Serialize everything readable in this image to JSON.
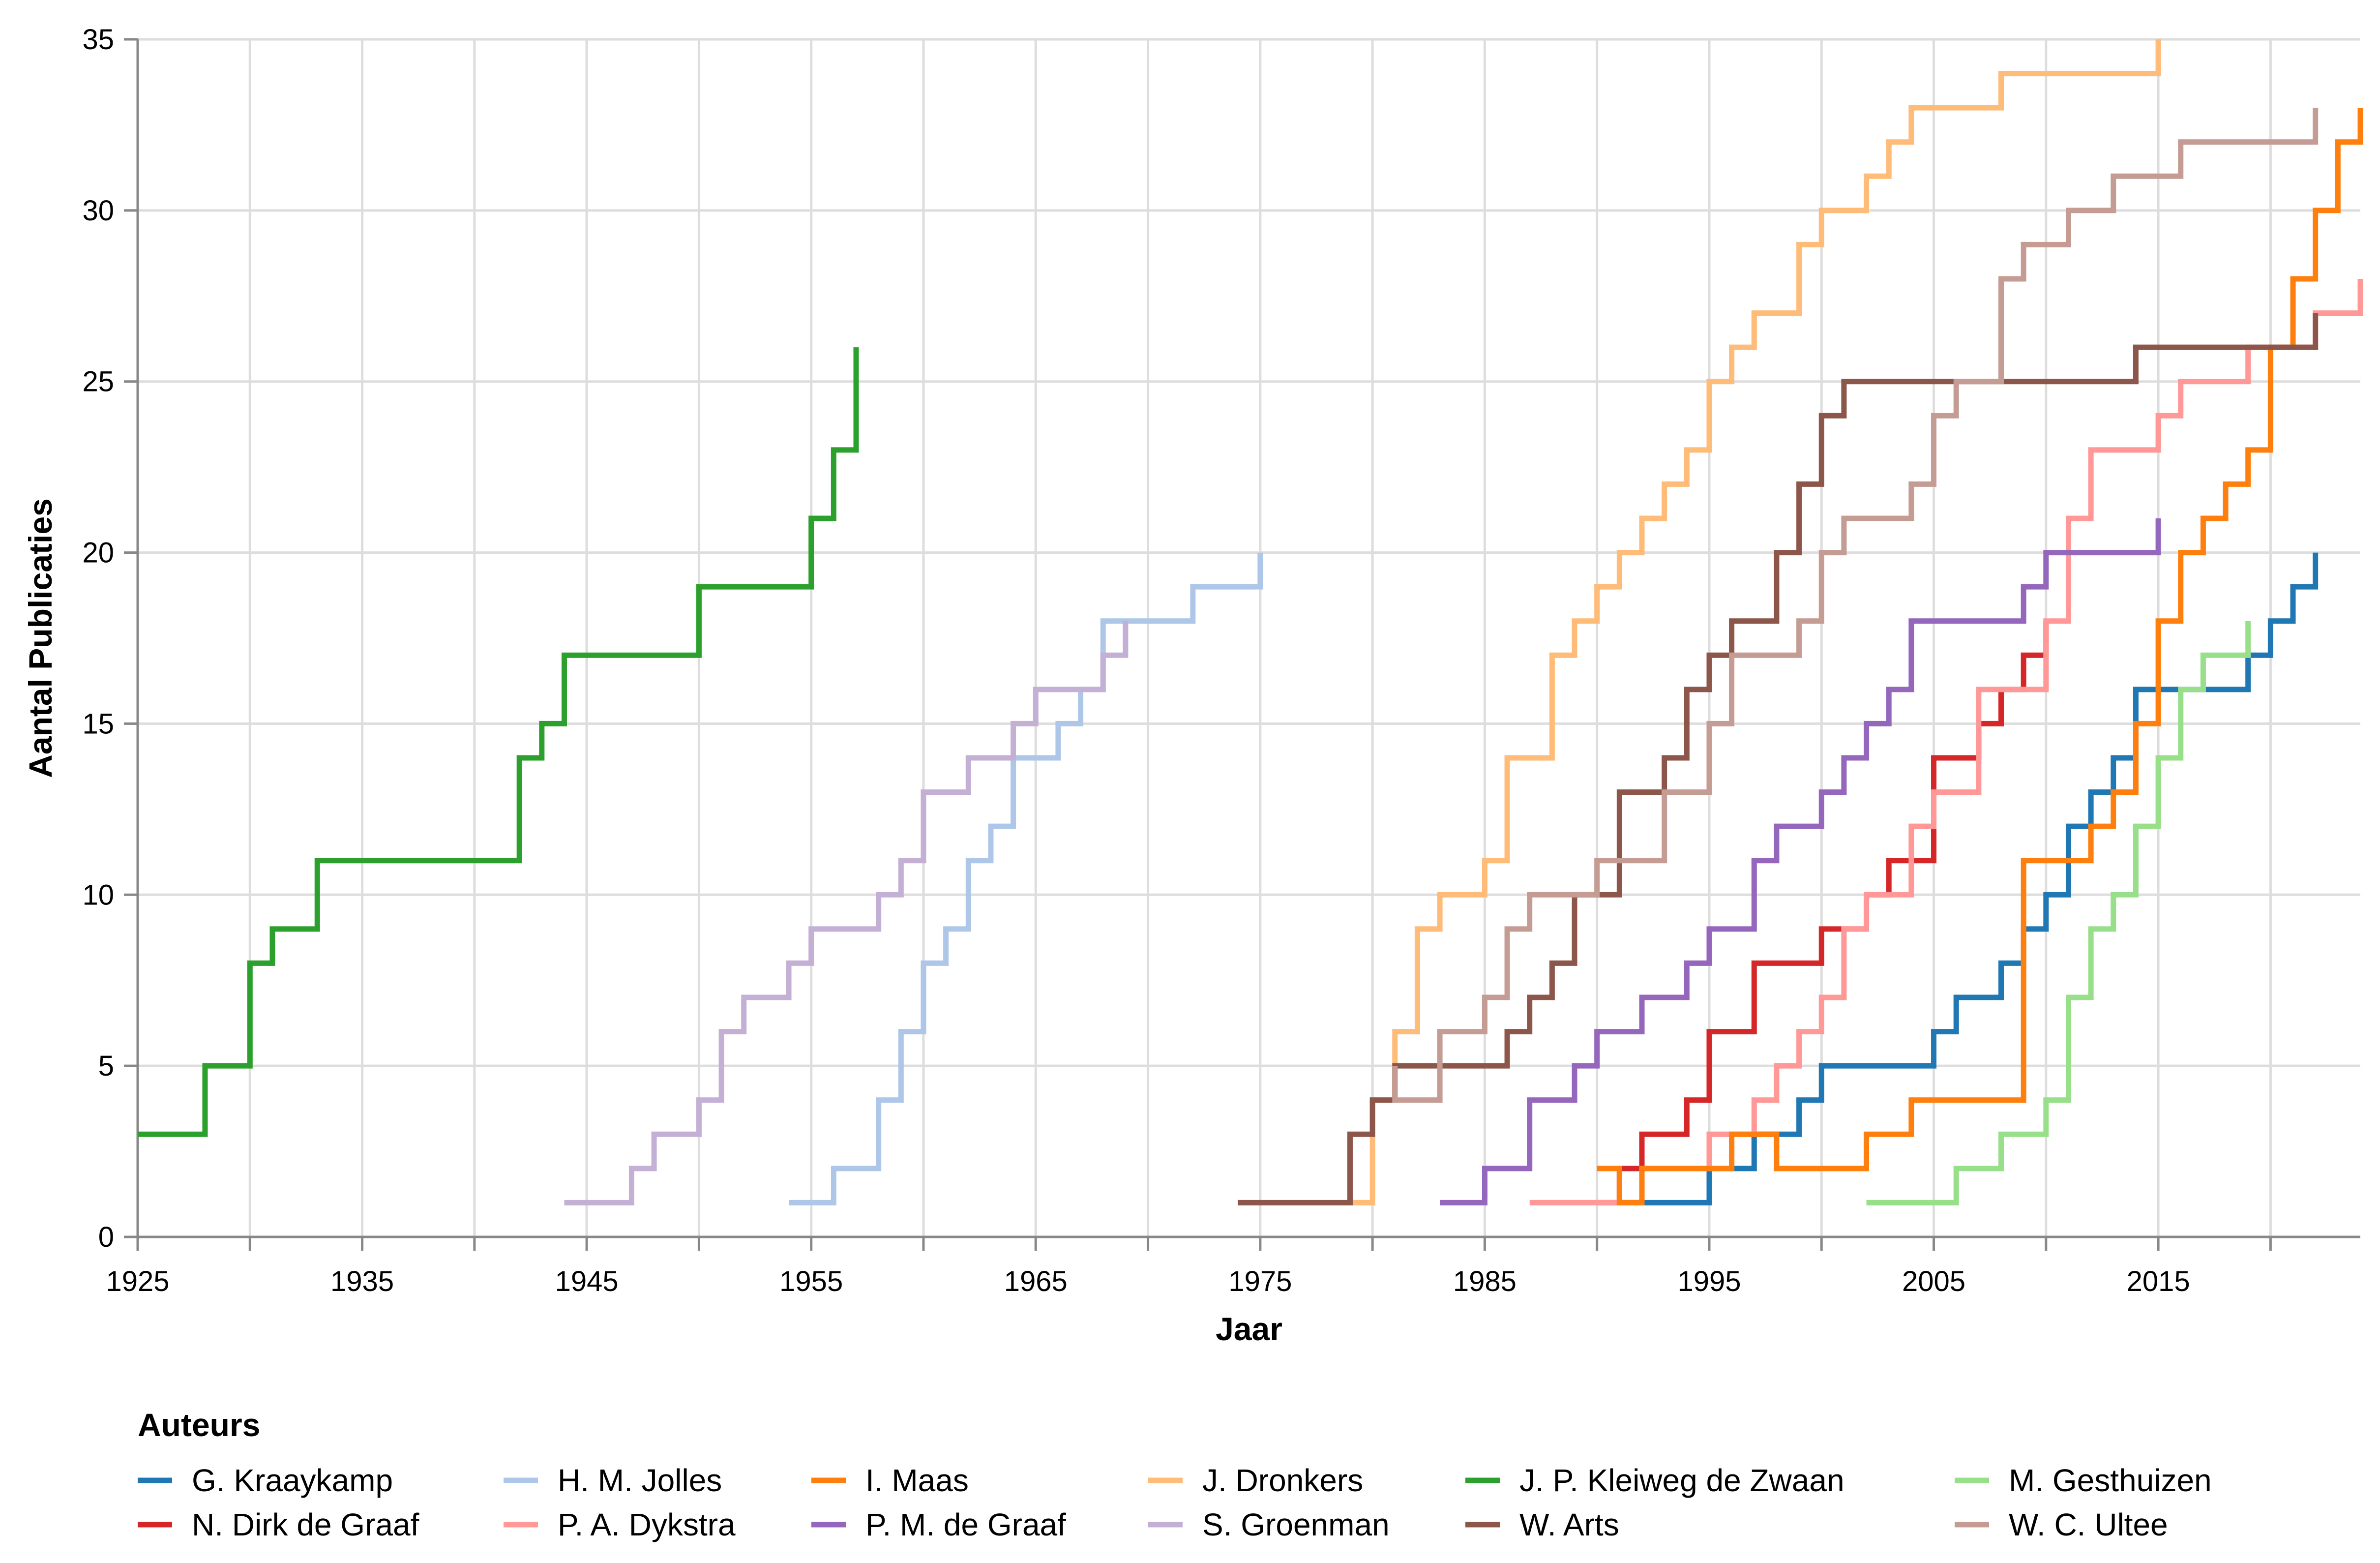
{
  "chart_data": {
    "type": "line",
    "interpolation": "step",
    "title": "",
    "xlabel": "Jaar",
    "ylabel": "Aantal Publicaties",
    "xlim": [
      1925,
      2024
    ],
    "ylim": [
      0,
      35
    ],
    "x_ticks": [
      1925,
      1935,
      1945,
      1955,
      1965,
      1975,
      1985,
      1995,
      2005,
      2015
    ],
    "y_ticks": [
      0,
      5,
      10,
      15,
      20,
      25,
      30,
      35
    ],
    "grid": true,
    "legend": {
      "title": "Auteurs",
      "position": "bottom"
    },
    "series": [
      {
        "name": "G. Kraaykamp",
        "color": "#1f77b4",
        "points": [
          [
            1991,
            1
          ],
          [
            1995,
            2
          ],
          [
            1997,
            3
          ],
          [
            1999,
            4
          ],
          [
            2000,
            5
          ],
          [
            2005,
            6
          ],
          [
            2006,
            7
          ],
          [
            2008,
            8
          ],
          [
            2009,
            9
          ],
          [
            2010,
            10
          ],
          [
            2011,
            12
          ],
          [
            2012,
            13
          ],
          [
            2013,
            14
          ],
          [
            2014,
            16
          ],
          [
            2016,
            16
          ],
          [
            2019,
            17
          ],
          [
            2020,
            18
          ],
          [
            2021,
            19
          ],
          [
            2022,
            20
          ]
        ]
      },
      {
        "name": "N. Dirk de Graaf",
        "color": "#d62728",
        "points": [
          [
            1990,
            1
          ],
          [
            1991,
            2
          ],
          [
            1992,
            3
          ],
          [
            1994,
            4
          ],
          [
            1995,
            6
          ],
          [
            1997,
            8
          ],
          [
            2000,
            9
          ],
          [
            2002,
            10
          ],
          [
            2003,
            11
          ],
          [
            2005,
            14
          ],
          [
            2007,
            15
          ],
          [
            2008,
            16
          ],
          [
            2009,
            17
          ],
          [
            2010,
            18
          ]
        ]
      },
      {
        "name": "H. M. Jolles",
        "color": "#aec7e8",
        "points": [
          [
            1954,
            1
          ],
          [
            1956,
            2
          ],
          [
            1958,
            4
          ],
          [
            1959,
            6
          ],
          [
            1960,
            8
          ],
          [
            1961,
            9
          ],
          [
            1962,
            11
          ],
          [
            1963,
            12
          ],
          [
            1964,
            14
          ],
          [
            1966,
            15
          ],
          [
            1967,
            16
          ],
          [
            1968,
            18
          ],
          [
            1972,
            19
          ],
          [
            1975,
            20
          ]
        ]
      },
      {
        "name": "P. A. Dykstra",
        "color": "#ff9896",
        "points": [
          [
            1987,
            1
          ],
          [
            1992,
            2
          ],
          [
            1995,
            3
          ],
          [
            1997,
            4
          ],
          [
            1998,
            5
          ],
          [
            1999,
            6
          ],
          [
            2000,
            7
          ],
          [
            2001,
            9
          ],
          [
            2002,
            10
          ],
          [
            2004,
            12
          ],
          [
            2005,
            13
          ],
          [
            2007,
            16
          ],
          [
            2010,
            18
          ],
          [
            2011,
            21
          ],
          [
            2012,
            23
          ],
          [
            2015,
            24
          ],
          [
            2016,
            25
          ],
          [
            2019,
            26
          ],
          [
            2022,
            27
          ],
          [
            2024,
            28
          ]
        ]
      },
      {
        "name": "I. Maas",
        "color": "#ff7f0e",
        "points": [
          [
            1990,
            2
          ],
          [
            1991,
            1
          ],
          [
            1992,
            2
          ],
          [
            1996,
            3
          ],
          [
            1998,
            2
          ],
          [
            2002,
            3
          ],
          [
            2004,
            4
          ],
          [
            2005,
            4
          ],
          [
            2009,
            9
          ],
          [
            2009,
            11
          ],
          [
            2011,
            11
          ],
          [
            2012,
            12
          ],
          [
            2013,
            13
          ],
          [
            2014,
            15
          ],
          [
            2015,
            18
          ],
          [
            2016,
            20
          ],
          [
            2017,
            21
          ],
          [
            2018,
            22
          ],
          [
            2019,
            23
          ],
          [
            2020,
            26
          ],
          [
            2021,
            28
          ],
          [
            2022,
            30
          ],
          [
            2023,
            32
          ],
          [
            2024,
            33
          ]
        ]
      },
      {
        "name": "P. M. de Graaf",
        "color": "#9467bd",
        "points": [
          [
            1983,
            1
          ],
          [
            1985,
            2
          ],
          [
            1987,
            4
          ],
          [
            1989,
            5
          ],
          [
            1990,
            6
          ],
          [
            1992,
            7
          ],
          [
            1994,
            8
          ],
          [
            1995,
            9
          ],
          [
            1997,
            11
          ],
          [
            1998,
            12
          ],
          [
            2000,
            13
          ],
          [
            2001,
            14
          ],
          [
            2002,
            15
          ],
          [
            2003,
            16
          ],
          [
            2004,
            18
          ],
          [
            2009,
            19
          ],
          [
            2010,
            20
          ],
          [
            2015,
            21
          ]
        ]
      },
      {
        "name": "J. Dronkers",
        "color": "#ffbb78",
        "points": [
          [
            1979,
            1
          ],
          [
            1980,
            4
          ],
          [
            1981,
            6
          ],
          [
            1982,
            9
          ],
          [
            1983,
            10
          ],
          [
            1985,
            11
          ],
          [
            1986,
            14
          ],
          [
            1988,
            17
          ],
          [
            1989,
            18
          ],
          [
            1990,
            19
          ],
          [
            1991,
            20
          ],
          [
            1992,
            21
          ],
          [
            1993,
            22
          ],
          [
            1994,
            23
          ],
          [
            1995,
            25
          ],
          [
            1996,
            26
          ],
          [
            1997,
            27
          ],
          [
            1999,
            29
          ],
          [
            2000,
            30
          ],
          [
            2002,
            31
          ],
          [
            2003,
            32
          ],
          [
            2004,
            33
          ],
          [
            2008,
            34
          ],
          [
            2015,
            35
          ]
        ]
      },
      {
        "name": "S. Groenman",
        "color": "#c5b0d5",
        "points": [
          [
            1944,
            1
          ],
          [
            1947,
            2
          ],
          [
            1948,
            3
          ],
          [
            1950,
            4
          ],
          [
            1951,
            6
          ],
          [
            1952,
            7
          ],
          [
            1954,
            8
          ],
          [
            1955,
            9
          ],
          [
            1958,
            10
          ],
          [
            1959,
            11
          ],
          [
            1960,
            13
          ],
          [
            1962,
            14
          ],
          [
            1964,
            15
          ],
          [
            1965,
            16
          ],
          [
            1968,
            17
          ],
          [
            1969,
            18
          ]
        ]
      },
      {
        "name": "J. P. Kleiweg de Zwaan",
        "color": "#2ca02c",
        "points": [
          [
            1925,
            3
          ],
          [
            1928,
            5
          ],
          [
            1930,
            8
          ],
          [
            1931,
            9
          ],
          [
            1933,
            11
          ],
          [
            1942,
            14
          ],
          [
            1943,
            15
          ],
          [
            1944,
            17
          ],
          [
            1950,
            19
          ],
          [
            1955,
            21
          ],
          [
            1956,
            23
          ],
          [
            1957,
            26
          ]
        ]
      },
      {
        "name": "W. Arts",
        "color": "#8c564b",
        "points": [
          [
            1974,
            1
          ],
          [
            1979,
            3
          ],
          [
            1980,
            4
          ],
          [
            1981,
            5
          ],
          [
            1986,
            6
          ],
          [
            1987,
            7
          ],
          [
            1988,
            8
          ],
          [
            1989,
            10
          ],
          [
            1991,
            13
          ],
          [
            1993,
            14
          ],
          [
            1994,
            16
          ],
          [
            1995,
            17
          ],
          [
            1996,
            18
          ],
          [
            1998,
            20
          ],
          [
            1999,
            22
          ],
          [
            2000,
            24
          ],
          [
            2001,
            25
          ],
          [
            2014,
            26
          ],
          [
            2022,
            27
          ]
        ]
      },
      {
        "name": "M. Gesthuizen",
        "color": "#98df8a",
        "points": [
          [
            2002,
            1
          ],
          [
            2006,
            2
          ],
          [
            2008,
            3
          ],
          [
            2010,
            4
          ],
          [
            2011,
            7
          ],
          [
            2012,
            9
          ],
          [
            2013,
            10
          ],
          [
            2014,
            12
          ],
          [
            2015,
            14
          ],
          [
            2016,
            16
          ],
          [
            2017,
            17
          ],
          [
            2019,
            18
          ]
        ]
      },
      {
        "name": "W. C. Ultee",
        "color": "#c49c94",
        "points": [
          [
            1981,
            5
          ],
          [
            1981,
            4
          ],
          [
            1983,
            6
          ],
          [
            1985,
            7
          ],
          [
            1986,
            9
          ],
          [
            1987,
            10
          ],
          [
            1990,
            11
          ],
          [
            1993,
            13
          ],
          [
            1995,
            15
          ],
          [
            1996,
            17
          ],
          [
            1999,
            18
          ],
          [
            2000,
            20
          ],
          [
            2001,
            21
          ],
          [
            2004,
            22
          ],
          [
            2005,
            24
          ],
          [
            2006,
            25
          ],
          [
            2008,
            28
          ],
          [
            2009,
            29
          ],
          [
            2011,
            30
          ],
          [
            2013,
            31
          ],
          [
            2016,
            32
          ],
          [
            2022,
            33
          ]
        ]
      }
    ]
  }
}
